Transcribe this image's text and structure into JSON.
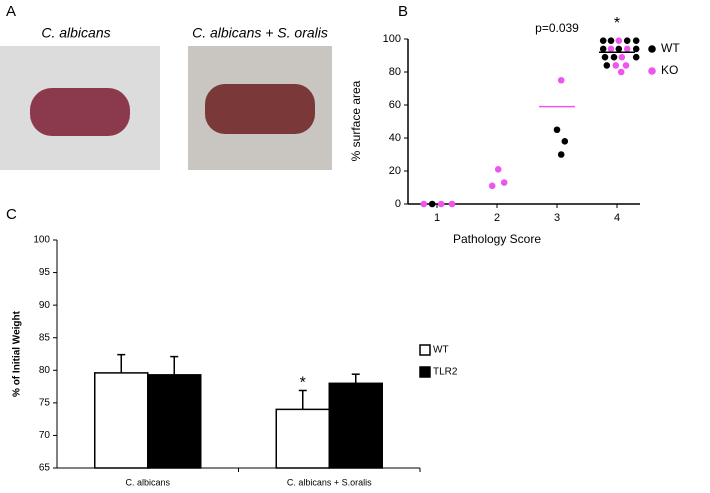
{
  "panel_a": {
    "label": "A",
    "images": [
      {
        "caption": "C. albicans"
      },
      {
        "caption": "C. albicans + S. oralis"
      }
    ]
  },
  "chart_data": [
    {
      "type": "scatter",
      "panel_label": "B",
      "x_label": "Pathology Score",
      "y_label": "% surface area",
      "xlim": [
        0.5,
        4.5
      ],
      "xticks": [
        1,
        2,
        3,
        4
      ],
      "ylim": [
        0,
        100
      ],
      "yticks": [
        0,
        20,
        40,
        60,
        80,
        100
      ],
      "legend": "right",
      "series": [
        {
          "name": "WT",
          "color": "#000000",
          "x": [
            0.92,
            3.0,
            3.13,
            3.07,
            3.77,
            3.9,
            4.17,
            4.32,
            3.77,
            4.03,
            4.32,
            3.8,
            3.95,
            4.32,
            3.83
          ],
          "values": [
            0,
            45,
            38,
            30,
            99,
            99,
            99,
            99,
            94,
            94,
            94,
            89,
            89,
            89,
            84
          ]
        },
        {
          "name": "KO",
          "color": "#ee55ee",
          "x": [
            0.78,
            1.07,
            1.25,
            1.92,
            2.12,
            2.02,
            3.07,
            4.03,
            3.9,
            4.17,
            4.08,
            3.98,
            4.15,
            4.07
          ],
          "values": [
            0,
            0,
            0,
            11,
            13,
            21,
            75,
            99,
            94,
            94,
            89,
            84,
            84,
            80
          ]
        }
      ],
      "mean_lines": [
        {
          "x": 3,
          "value": 59,
          "color": "#ee55ee"
        },
        {
          "x": 4,
          "value": 92,
          "color": "#000000"
        }
      ],
      "annotations": [
        {
          "text": "p=0.039",
          "x": 3
        },
        {
          "text": "*",
          "x": 4
        }
      ]
    },
    {
      "type": "bar",
      "panel_label": "C",
      "y_label": "% of Initial Weight",
      "categories": [
        "C. albicans",
        "C. albicans + S.oralis"
      ],
      "ylim": [
        65,
        100
      ],
      "yticks": [
        65,
        70,
        75,
        80,
        85,
        90,
        95,
        100
      ],
      "legend": "right",
      "series": [
        {
          "name": "WT",
          "color": "#ffffff",
          "values": [
            79.6,
            74.0
          ],
          "errors": [
            2.8,
            2.9
          ]
        },
        {
          "name": "TLR2",
          "color": "#000000",
          "values": [
            79.3,
            78.0
          ],
          "errors": [
            2.8,
            1.4
          ]
        }
      ],
      "annotations": [
        {
          "text": "*",
          "category": 1,
          "series": 0
        }
      ]
    }
  ]
}
